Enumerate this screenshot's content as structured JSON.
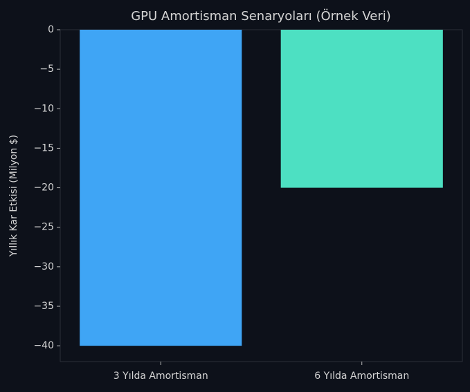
{
  "chart_data": {
    "type": "bar",
    "title": "GPU Amortisman Senaryoları (Örnek Veri)",
    "y_label": "Yıllık Kar Etkisi (Milyon $)",
    "categories": [
      "3 Yılda Amortisman",
      "6 Yılda Amortisman"
    ],
    "values": [
      -40,
      -20
    ],
    "colors": [
      "#3fa5f5",
      "#4de0c2"
    ],
    "ylim": [
      -42,
      0
    ],
    "yticks": [
      0,
      {
        "value": -5,
        "label": "−5"
      },
      {
        "value": -10,
        "label": "−10"
      },
      {
        "value": -15,
        "label": "−15"
      },
      {
        "value": -20,
        "label": "−20"
      },
      {
        "value": -25,
        "label": "−25"
      },
      {
        "value": -30,
        "label": "−30"
      },
      {
        "value": -35,
        "label": "−35"
      },
      {
        "value": -40,
        "label": "−40"
      }
    ],
    "grid": false
  }
}
